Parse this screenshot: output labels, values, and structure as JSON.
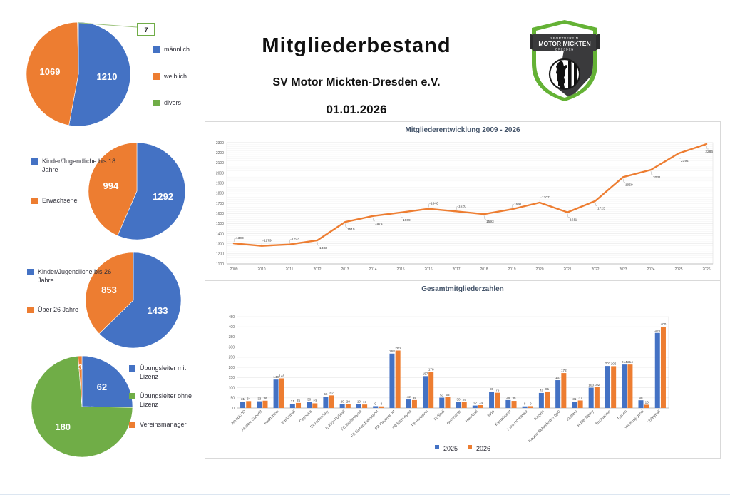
{
  "header": {
    "title": "Mitgliederbestand",
    "subtitle": "SV Motor Mickten-Dresden e.V.",
    "date": "01.01.2026"
  },
  "logo": {
    "line1": "SPORTVEREIN",
    "line2": "MOTOR MICKTEN",
    "line3": "DRESDEN",
    "green": "#64b235",
    "dark": "#3a3a3c"
  },
  "colors": {
    "blue": "#4472C4",
    "orange": "#ED7D31",
    "green": "#70AD47",
    "title_gray": "#44546A",
    "axis_gray": "#595959"
  },
  "chart_data": [
    {
      "id": "gender_pie",
      "type": "pie",
      "legend_position": "right",
      "slices": [
        {
          "label": "männlich",
          "value": 1210,
          "color": "blue"
        },
        {
          "label": "weiblich",
          "value": 1069,
          "color": "orange"
        },
        {
          "label": "divers",
          "value": 7,
          "color": "green",
          "callout": true
        }
      ]
    },
    {
      "id": "age18_pie",
      "type": "pie",
      "legend_position": "left",
      "slices": [
        {
          "label": "Kinder/Jugendliche bis 18 Jahre",
          "value": 1292,
          "color": "blue"
        },
        {
          "label": "Erwachsene",
          "value": 994,
          "color": "orange"
        }
      ]
    },
    {
      "id": "age26_pie",
      "type": "pie",
      "legend_position": "left",
      "slices": [
        {
          "label": "Kinder/Jugendliche bis 26 Jahre",
          "value": 1433,
          "color": "blue"
        },
        {
          "label": "Über 26 Jahre",
          "value": 853,
          "color": "orange"
        }
      ]
    },
    {
      "id": "trainer_pie",
      "type": "pie",
      "legend_position": "right",
      "slices": [
        {
          "label": "Übungsleiter mit Lizenz",
          "value": 62,
          "color": "blue"
        },
        {
          "label": "Übungsleiter ohne Lizenz",
          "value": 180,
          "color": "green"
        },
        {
          "label": "Vereinsmanager",
          "value": 3,
          "color": "orange"
        }
      ]
    },
    {
      "id": "development_line",
      "type": "line",
      "title": "Mitgliederentwicklung 2009 - 2026",
      "x": [
        "2009",
        "2010",
        "2011",
        "2012",
        "2013",
        "2014",
        "2015",
        "2016",
        "2017",
        "2018",
        "2019",
        "2020",
        "2021",
        "2022",
        "2023",
        "2024",
        "2025",
        "2026"
      ],
      "values": [
        1303,
        1279,
        1293,
        1333,
        1515,
        1574,
        1609,
        1646,
        1620,
        1593,
        1641,
        1707,
        1611,
        1723,
        1959,
        2031,
        2194,
        2286
      ],
      "ylim": [
        1100,
        2300
      ],
      "ytick": 100,
      "line_color": "orange",
      "grid": true
    },
    {
      "id": "departments_bar",
      "type": "bar",
      "title": "Gesamtmitgliederzahlen",
      "categories": [
        "Aerobic 50",
        "Aerobic Superfit",
        "Badminton",
        "Basketball",
        "Capoeira",
        "Einradhockey",
        "E-Kick-Fußball",
        "FB Breitensport",
        "FB Gesundheitssport",
        "FB Kindersport",
        "FB Elternsport",
        "FB Inklusion",
        "Fußball",
        "Gymnastik",
        "Handball",
        "Judo",
        "Kampfkunst",
        "Kara-Ho Karate",
        "Kegeln",
        "Kegeln Behinderten-SpG",
        "Klettern",
        "Roller Derby",
        "Tischtennis",
        "Turnen",
        "Vereinsjugend",
        "Volleyball"
      ],
      "series": [
        {
          "name": "2025",
          "color": "blue",
          "values": [
            31,
            33,
            140,
            21,
            30,
            56,
            20,
            19,
            9,
            268,
            42,
            157,
            51,
            30,
            12,
            80,
            39,
            8,
            74,
            137,
            31,
            100,
            207,
            214,
            38,
            370
          ]
        },
        {
          "name": "2026",
          "color": "orange",
          "values": [
            34,
            36,
            146,
            25,
            23,
            62,
            20,
            17,
            8,
            283,
            39,
            178,
            53,
            29,
            14,
            75,
            35,
            9,
            81,
            172,
            37,
            102,
            206,
            214,
            16,
            400
          ]
        }
      ],
      "ylim": [
        0,
        450
      ],
      "ytick": 50,
      "grid": true,
      "legend_position": "bottom"
    }
  ]
}
